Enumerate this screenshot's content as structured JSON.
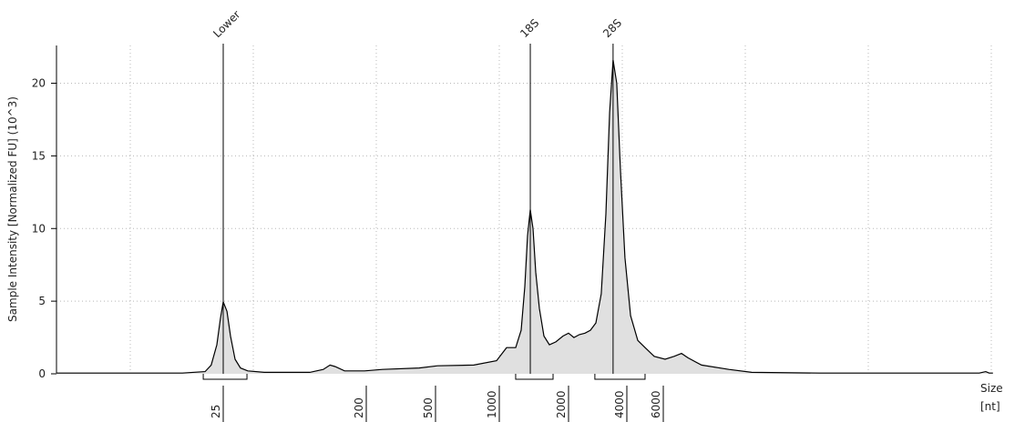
{
  "chart_data": {
    "type": "area",
    "ylabel": "Sample Intensity [Normalized FU] (10^3)",
    "xlabel": "Size",
    "xunit": "[nt]",
    "xscale": "size-ladder",
    "grid": true,
    "color": "#e0e0e0",
    "line_color": "#000000",
    "ylim": [
      0,
      22.6
    ],
    "yticks": [
      0,
      5,
      10,
      15,
      20
    ],
    "xlim": [
      2.2,
      235000
    ],
    "xticks": [
      25,
      200,
      500,
      1000,
      2000,
      4000,
      6000
    ],
    "x": [
      2.2,
      13.8,
      19.2,
      21.0,
      22.8,
      24.0,
      25,
      26.4,
      27.8,
      29.7,
      32.1,
      35.7,
      45.4,
      88,
      107,
      118,
      127,
      146,
      195,
      248,
      403,
      511,
      758,
      971,
      1076,
      1178,
      1245,
      1291,
      1327,
      1364,
      1402,
      1440,
      1494,
      1564,
      1651,
      1762,
      1892,
      2000,
      2133,
      2276,
      2432,
      2594,
      2767,
      2951,
      3119,
      3258,
      3396,
      3548,
      3707,
      3908,
      4169,
      4519,
      4898,
      5420,
      6124,
      6771,
      7345,
      7889,
      9183,
      12445,
      16032,
      34277,
      201837,
      216770,
      225424,
      235000
    ],
    "values": [
      0.05,
      0.05,
      0.15,
      0.6,
      2,
      3.8,
      4.95,
      4.3,
      2.6,
      1.0,
      0.4,
      0.2,
      0.1,
      0.1,
      0.3,
      0.6,
      0.5,
      0.2,
      0.2,
      0.3,
      0.4,
      0.55,
      0.6,
      0.9,
      1.8,
      1.8,
      3,
      6,
      9.5,
      11.3,
      10,
      7,
      4.5,
      2.6,
      2.0,
      2.2,
      2.6,
      2.8,
      2.5,
      2.7,
      2.8,
      3.0,
      3.5,
      5.5,
      11,
      18,
      21.6,
      20,
      14,
      8,
      4,
      2.3,
      1.8,
      1.2,
      1.0,
      1.2,
      1.4,
      1.1,
      0.6,
      0.3,
      0.1,
      0.05,
      0.05,
      0.15,
      0.05,
      0.05
    ],
    "peaks": [
      {
        "label": "Lower",
        "x": 25
      },
      {
        "label": "18S",
        "x": 1364
      },
      {
        "label": "28S",
        "x": 3396
      }
    ],
    "regions": [
      [
        18.7,
        35.3
      ],
      [
        1178,
        1713
      ],
      [
        2735,
        4898
      ]
    ]
  }
}
